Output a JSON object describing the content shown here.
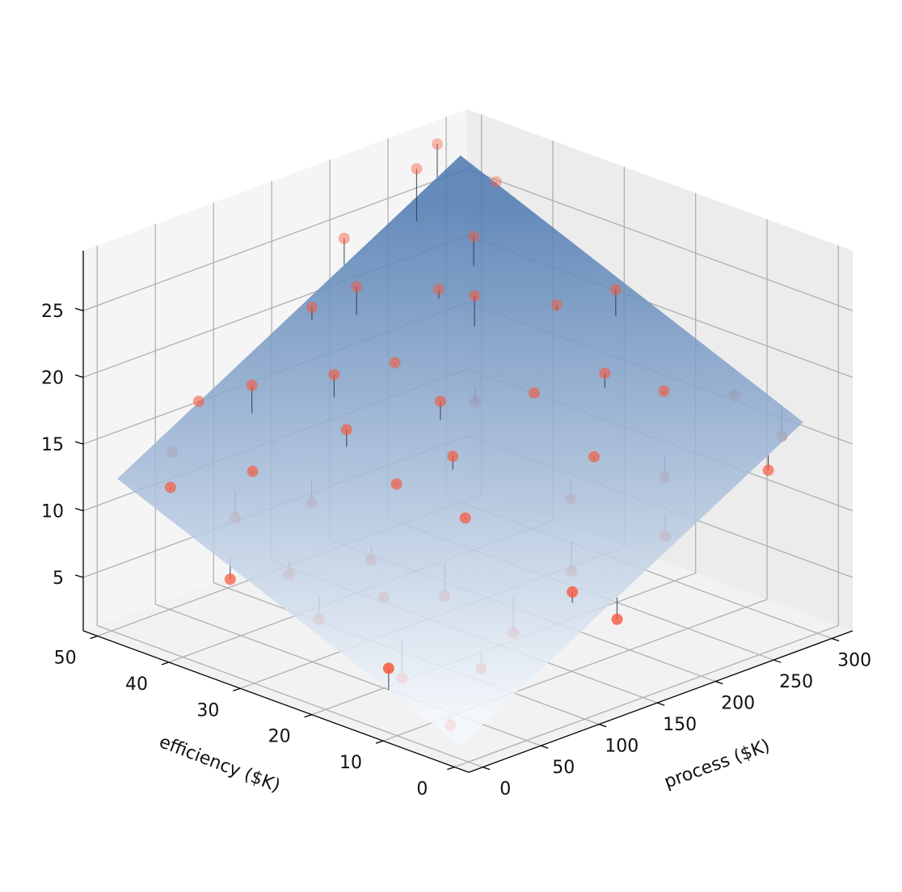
{
  "chart_data": {
    "type": "scatter3d",
    "xlabel": "process ($K)",
    "ylabel": "efficiency ($K)",
    "x": [
      15,
      5,
      20,
      40,
      30,
      60,
      80,
      50,
      100,
      120,
      140,
      160,
      180,
      200,
      220,
      250,
      280,
      300,
      260,
      240,
      290,
      300,
      270,
      200,
      180,
      150,
      110,
      90,
      70,
      130,
      170,
      210,
      230,
      260,
      190,
      120,
      60,
      35,
      10,
      25,
      90,
      160,
      220,
      280,
      140,
      75,
      45,
      110,
      250,
      200
    ],
    "y": [
      5,
      12,
      45,
      48,
      30,
      40,
      35,
      20,
      10,
      5,
      25,
      30,
      45,
      50,
      40,
      48,
      50,
      45,
      30,
      20,
      10,
      5,
      2,
      5,
      15,
      10,
      35,
      45,
      25,
      40,
      38,
      25,
      10,
      15,
      30,
      20,
      8,
      15,
      35,
      25,
      18,
      48,
      35,
      25,
      2,
      50,
      40,
      28,
      40,
      15
    ],
    "z": [
      2.3,
      5.5,
      12.1,
      13.5,
      8.2,
      13.0,
      11.0,
      7.8,
      5.5,
      8.9,
      14.5,
      17.0,
      22.0,
      24.0,
      21.5,
      28.0,
      28.5,
      26.0,
      21.0,
      18.5,
      17.2,
      14.8,
      13.8,
      10.5,
      12.0,
      8.5,
      15.5,
      17.5,
      9.0,
      18.0,
      18.0,
      17.0,
      13.0,
      17.5,
      16.0,
      11.5,
      4.5,
      3.2,
      7.5,
      6.0,
      7.0,
      20.5,
      22.0,
      22.5,
      6.8,
      15.8,
      10.0,
      12.8,
      24.5,
      14.5
    ],
    "xlim": [
      -12,
      318
    ],
    "ylim": [
      -2,
      52
    ],
    "zlim": [
      1,
      29.5
    ],
    "xticks": [
      0,
      50,
      100,
      150,
      200,
      250,
      300
    ],
    "yticks": [
      0,
      10,
      20,
      30,
      40,
      50
    ],
    "zticks": [
      5,
      10,
      15,
      20,
      25
    ],
    "point_color": "#f9573a",
    "stem_color": "#2b3a55",
    "surface": {
      "intercept": 1,
      "coef_x": 0.05,
      "coef_y": 0.22,
      "colors": [
        "#f3f7fc",
        "#4c78b0"
      ]
    },
    "grid": true
  }
}
